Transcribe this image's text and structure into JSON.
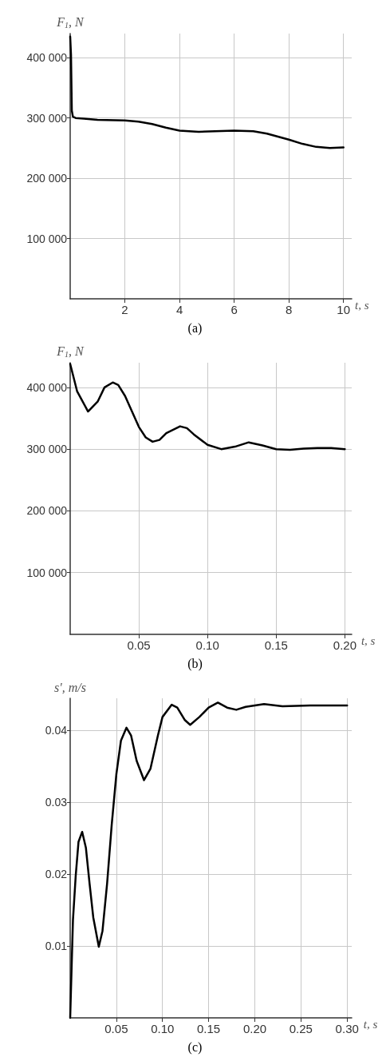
{
  "chart_data": [
    {
      "type": "line",
      "ylabel": "F$_{1}$, N",
      "xlabel": "t, s",
      "annotations": [
        "(a)"
      ],
      "grid": true,
      "xlim": [
        0,
        10.3
      ],
      "ylim": [
        0,
        440000
      ],
      "xticks": [
        2,
        4,
        6,
        8,
        10
      ],
      "yticks": [
        {
          "value": 100000,
          "label": "100 000"
        },
        {
          "value": 200000,
          "label": "200 000"
        },
        {
          "value": 300000,
          "label": "300 000"
        },
        {
          "value": 400000,
          "label": "400 000"
        }
      ],
      "series": [
        {
          "color": "#000000",
          "x": [
            0,
            0.03,
            0.06,
            0.1,
            0.2,
            0.5,
            1,
            2,
            2.5,
            3,
            3.5,
            4,
            4.7,
            5.3,
            6,
            6.7,
            7.2,
            7.6,
            8,
            8.5,
            9,
            9.5,
            10
          ],
          "values": [
            435000,
            405000,
            312000,
            302000,
            300000,
            299000,
            297000,
            296000,
            294000,
            290000,
            284000,
            279000,
            277000,
            278000,
            279000,
            278000,
            274000,
            269000,
            264000,
            257000,
            252000,
            250000,
            251000
          ]
        }
      ]
    },
    {
      "type": "line",
      "ylabel": "F$_{1}$, N",
      "xlabel": "t, s",
      "annotations": [
        "(b)"
      ],
      "grid": true,
      "xlim": [
        0,
        0.205
      ],
      "ylim": [
        0,
        440000
      ],
      "xticks": [
        0.05,
        {
          "value": 0.1,
          "label": "0.10"
        },
        0.15,
        {
          "value": 0.2,
          "label": "0.20"
        }
      ],
      "yticks": [
        {
          "value": 100000,
          "label": "100 000"
        },
        {
          "value": 200000,
          "label": "200 000"
        },
        {
          "value": 300000,
          "label": "300 000"
        },
        {
          "value": 400000,
          "label": "400 000"
        }
      ],
      "series": [
        {
          "color": "#000000",
          "x": [
            0,
            0.005,
            0.013,
            0.02,
            0.025,
            0.031,
            0.035,
            0.04,
            0.045,
            0.05,
            0.055,
            0.06,
            0.065,
            0.07,
            0.08,
            0.085,
            0.09,
            0.1,
            0.11,
            0.12,
            0.13,
            0.14,
            0.15,
            0.16,
            0.17,
            0.18,
            0.19,
            0.2
          ],
          "values": [
            438000,
            394000,
            361000,
            377000,
            400000,
            408000,
            404000,
            386000,
            361000,
            336000,
            319000,
            312000,
            315000,
            326000,
            337000,
            334000,
            324000,
            307000,
            300000,
            304000,
            311000,
            306000,
            300000,
            299000,
            301000,
            302000,
            302000,
            300000
          ]
        }
      ]
    },
    {
      "type": "line",
      "ylabel": "s', m/s",
      "xlabel": "t, s",
      "annotations": [
        "(c)"
      ],
      "grid": true,
      "xlim": [
        0,
        0.305
      ],
      "ylim": [
        0,
        0.0445
      ],
      "xticks": [
        0.05,
        {
          "value": 0.1,
          "label": "0.10"
        },
        0.15,
        {
          "value": 0.2,
          "label": "0.20"
        },
        0.25,
        {
          "value": 0.3,
          "label": "0.30"
        }
      ],
      "yticks": [
        0.01,
        0.02,
        0.03,
        0.04
      ],
      "series": [
        {
          "color": "#000000",
          "x": [
            0,
            0.003,
            0.006,
            0.009,
            0.013,
            0.017,
            0.021,
            0.025,
            0.031,
            0.035,
            0.04,
            0.045,
            0.05,
            0.055,
            0.061,
            0.066,
            0.072,
            0.08,
            0.087,
            0.095,
            0.1,
            0.11,
            0.116,
            0.124,
            0.13,
            0.14,
            0.15,
            0.16,
            0.17,
            0.18,
            0.19,
            0.21,
            0.23,
            0.26,
            0.3
          ],
          "values": [
            0,
            0.0136,
            0.0198,
            0.0245,
            0.0259,
            0.0237,
            0.0187,
            0.014,
            0.0099,
            0.0121,
            0.0187,
            0.0269,
            0.0339,
            0.0386,
            0.0404,
            0.0393,
            0.0358,
            0.0331,
            0.0347,
            0.0393,
            0.0419,
            0.0436,
            0.0432,
            0.0415,
            0.0408,
            0.0419,
            0.0432,
            0.0439,
            0.0432,
            0.0429,
            0.0433,
            0.0437,
            0.0434,
            0.0435,
            0.0435
          ]
        }
      ]
    }
  ]
}
